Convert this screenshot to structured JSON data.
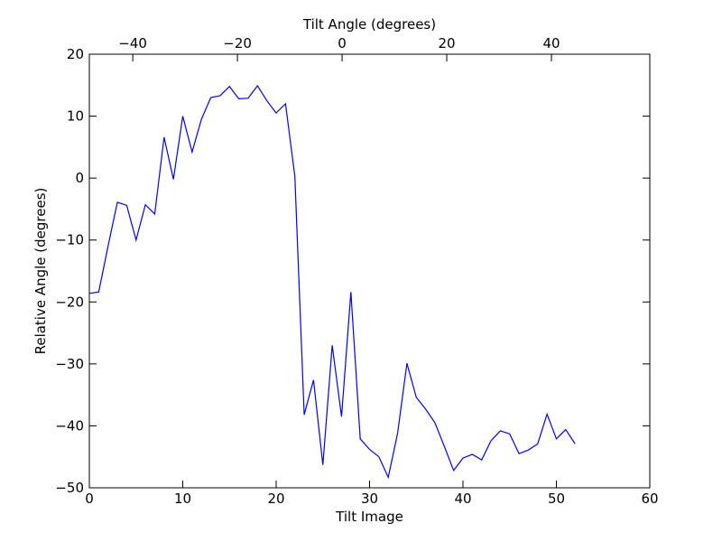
{
  "chart_data": {
    "type": "line",
    "xlabel": "Tilt Image",
    "ylabel": "Relative Angle (degrees)",
    "x2label": "Tilt Angle (degrees)",
    "x": [
      0,
      1,
      2,
      3,
      4,
      5,
      6,
      7,
      8,
      9,
      10,
      11,
      12,
      13,
      14,
      15,
      16,
      17,
      18,
      19,
      20,
      21,
      22,
      23,
      24,
      25,
      26,
      27,
      28,
      29,
      30,
      31,
      32,
      33,
      34,
      35,
      36,
      37,
      38,
      39,
      40,
      41,
      42,
      43,
      44,
      45,
      46,
      47,
      48,
      49,
      50,
      51,
      52
    ],
    "series": [
      {
        "color": "#0000ff",
        "values": [
          -18.6,
          -18.4,
          -11,
          -3.9,
          -4.4,
          -10,
          -4.3,
          -5.8,
          6.6,
          -0.2,
          10,
          4.2,
          9.5,
          13,
          13.3,
          14.8,
          12.8,
          12.9,
          14.9,
          12.5,
          10.5,
          12,
          0.3,
          -38.2,
          -32.6,
          -46.3,
          -27,
          -38.5,
          -18.4,
          -42.1,
          -43.8,
          -45,
          -48.3,
          -41.2,
          -29.9,
          -35.4,
          -37.3,
          -39.5,
          -43.3,
          -47.2,
          -45.2,
          -44.6,
          -45.5,
          -42.4,
          -40.8,
          -41.3,
          -44.5,
          -43.9,
          -42.9,
          -38.1,
          -42.1,
          -40.6,
          -42.9
        ]
      }
    ],
    "xlim": [
      0,
      60
    ],
    "xticks": [
      0,
      10,
      20,
      30,
      40,
      50,
      60
    ],
    "ylim": [
      -50,
      20
    ],
    "yticks": [
      {
        "value": -50,
        "label": "−50"
      },
      {
        "value": -40,
        "label": "−40"
      },
      {
        "value": -30,
        "label": "−30"
      },
      {
        "value": -20,
        "label": "−20"
      },
      {
        "value": -10,
        "label": "−10"
      },
      0,
      10,
      20
    ],
    "x2lim": [
      -48.3,
      58.8
    ],
    "x2ticks": [
      {
        "value": -40,
        "label": "−40"
      },
      {
        "value": -20,
        "label": "−20"
      },
      0,
      20,
      40
    ]
  }
}
